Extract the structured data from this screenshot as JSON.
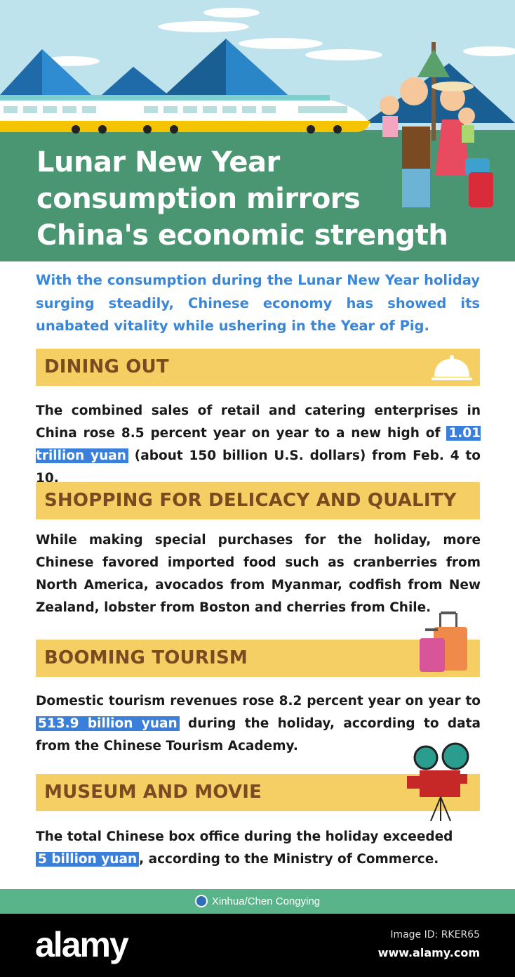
{
  "header": {
    "title_lines": [
      "Lunar New Year",
      "consumption mirrors",
      "China's economic strength"
    ]
  },
  "intro": "With the consumption during the Lunar New Year holiday surging steadily, Chinese economy has showed its unabated vitality while ushering in the Year of Pig.",
  "sections": [
    {
      "title": "DINING OUT",
      "icon": "cloche-icon",
      "text_before": "The combined sales of retail and catering enterprises in China rose 8.5 percent year on year to a new high of ",
      "highlight": "1.01 trillion yuan",
      "text_after": " (about 150 billion U.S. dollars) from Feb. 4 to 10."
    },
    {
      "title": "SHOPPING FOR DELICACY AND QUALITY",
      "text_before": "While making special purchases for the holiday, more Chinese favored imported food such as cranberries from North America, avocados from Myanmar, codfish from New Zealand, lobster from Boston and cherries from Chile.",
      "highlight": "",
      "text_after": ""
    },
    {
      "title": "BOOMING TOURISM",
      "icon": "suitcase-icon",
      "text_before": "Domestic tourism revenues rose 8.2 percent year on year to ",
      "highlight": "513.9 billion yuan",
      "text_after": " during the holiday, according to data from the Chinese Tourism Academy."
    },
    {
      "title": "MUSEUM AND MOVIE",
      "icon": "film-projector-icon",
      "text_before": "The total Chinese box office during the holiday exceeded ",
      "highlight": "5 billion yuan",
      "text_after": ", according to the Ministry of Commerce."
    }
  ],
  "credit": "Xinhua/Chen Congying",
  "stock_bar": {
    "logo": "alamy",
    "image_id": "Image ID: RKER65",
    "site": "www.alamy.com"
  },
  "colors": {
    "sky": "#bfe3ec",
    "header_green": "#4a9673",
    "section_bar": "#f5cf63",
    "section_text": "#7a4a22",
    "intro_blue": "#3a87d8",
    "highlight": "#3a7fd9",
    "footer_green": "#5ab48a"
  }
}
